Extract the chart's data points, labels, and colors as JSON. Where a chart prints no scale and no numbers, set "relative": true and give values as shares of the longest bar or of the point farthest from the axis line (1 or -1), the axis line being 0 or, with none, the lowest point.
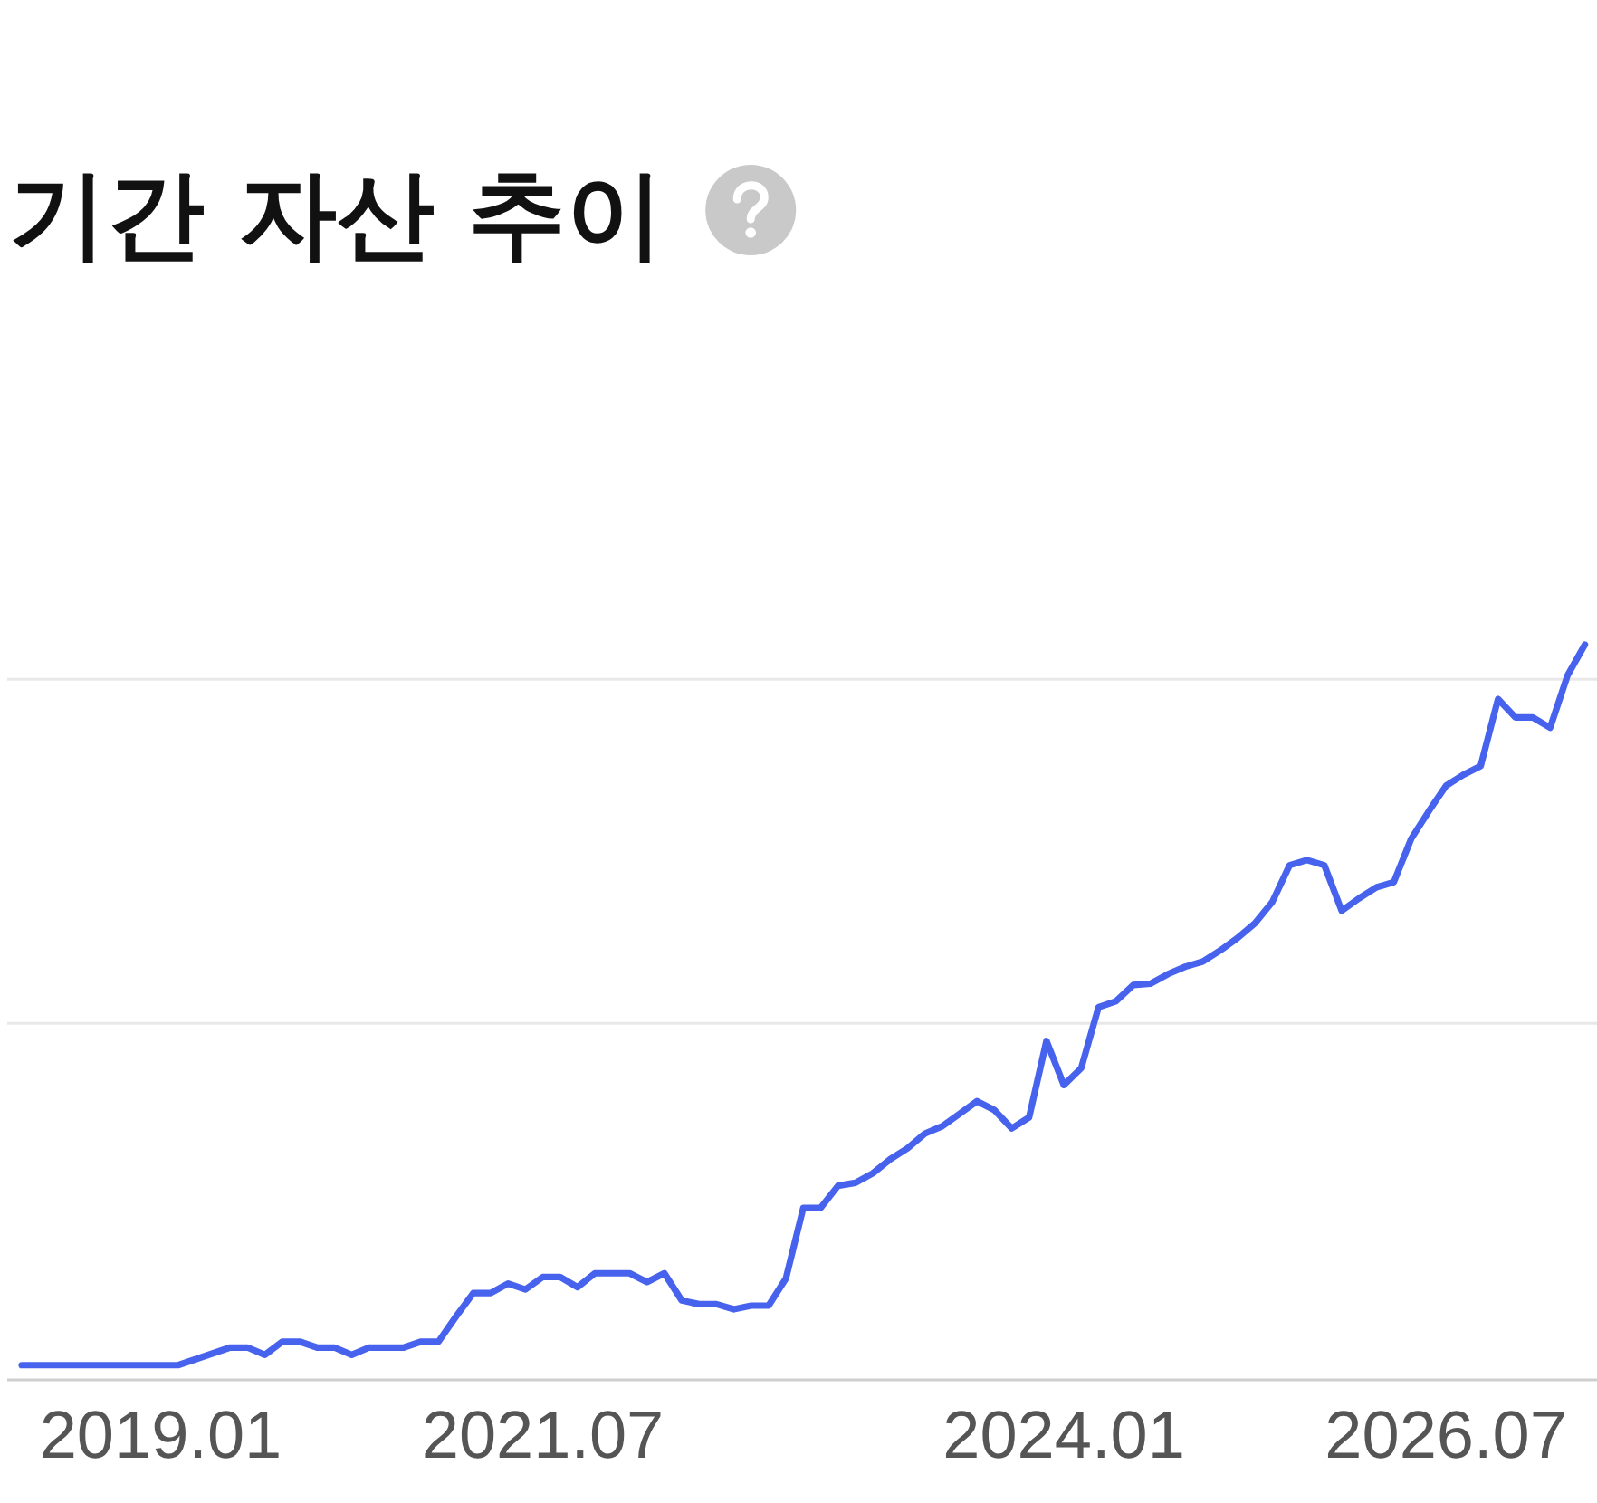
{
  "chart_data": {
    "type": "line",
    "title": "기간 자산 추이",
    "relative": true,
    "tick_labels": "x",
    "ref_lines": [
      {
        "axis": "y",
        "value": 0.485,
        "color": "#e8e8e8"
      },
      {
        "axis": "y",
        "value": 0.953,
        "color": "#e8e8e8"
      }
    ],
    "categories": [
      null,
      null,
      null,
      null,
      null,
      null,
      null,
      null,
      "2019.01",
      null,
      null,
      null,
      null,
      null,
      null,
      null,
      null,
      null,
      null,
      null,
      null,
      null,
      null,
      null,
      null,
      null,
      null,
      null,
      null,
      null,
      "2021.07",
      null,
      null,
      null,
      null,
      null,
      null,
      null,
      null,
      null,
      null,
      null,
      null,
      null,
      null,
      null,
      null,
      null,
      null,
      null,
      null,
      null,
      null,
      null,
      null,
      null,
      null,
      null,
      null,
      null,
      "2024.01",
      null,
      null,
      null,
      null,
      null,
      null,
      null,
      null,
      null,
      null,
      null,
      null,
      null,
      null,
      null,
      null,
      null,
      null,
      null,
      null,
      null,
      "2026.07",
      null,
      null,
      null,
      null,
      null,
      null,
      null,
      null
    ],
    "series": [
      {
        "color": "#4763ee",
        "values": [
          0.02,
          0.02,
          0.02,
          0.02,
          0.02,
          0.02,
          0.02,
          0.02,
          0.02,
          0.02,
          0.028,
          0.036,
          0.044,
          0.044,
          0.034,
          0.052,
          0.052,
          0.044,
          0.044,
          0.034,
          0.044,
          0.044,
          0.044,
          0.052,
          0.052,
          0.086,
          0.118,
          0.118,
          0.131,
          0.123,
          0.14,
          0.14,
          0.126,
          0.145,
          0.145,
          0.145,
          0.133,
          0.145,
          0.108,
          0.103,
          0.103,
          0.096,
          0.101,
          0.101,
          0.138,
          0.234,
          0.234,
          0.264,
          0.268,
          0.281,
          0.3,
          0.315,
          0.335,
          0.345,
          0.362,
          0.379,
          0.367,
          0.342,
          0.357,
          0.461,
          0.401,
          0.424,
          0.507,
          0.515,
          0.537,
          0.539,
          0.552,
          0.562,
          0.569,
          0.584,
          0.601,
          0.621,
          0.65,
          0.7,
          0.707,
          0.7,
          0.638,
          0.655,
          0.67,
          0.677,
          0.736,
          0.773,
          0.808,
          0.823,
          0.835,
          0.926,
          0.901,
          0.901,
          0.887,
          0.958,
          1
        ]
      }
    ]
  }
}
